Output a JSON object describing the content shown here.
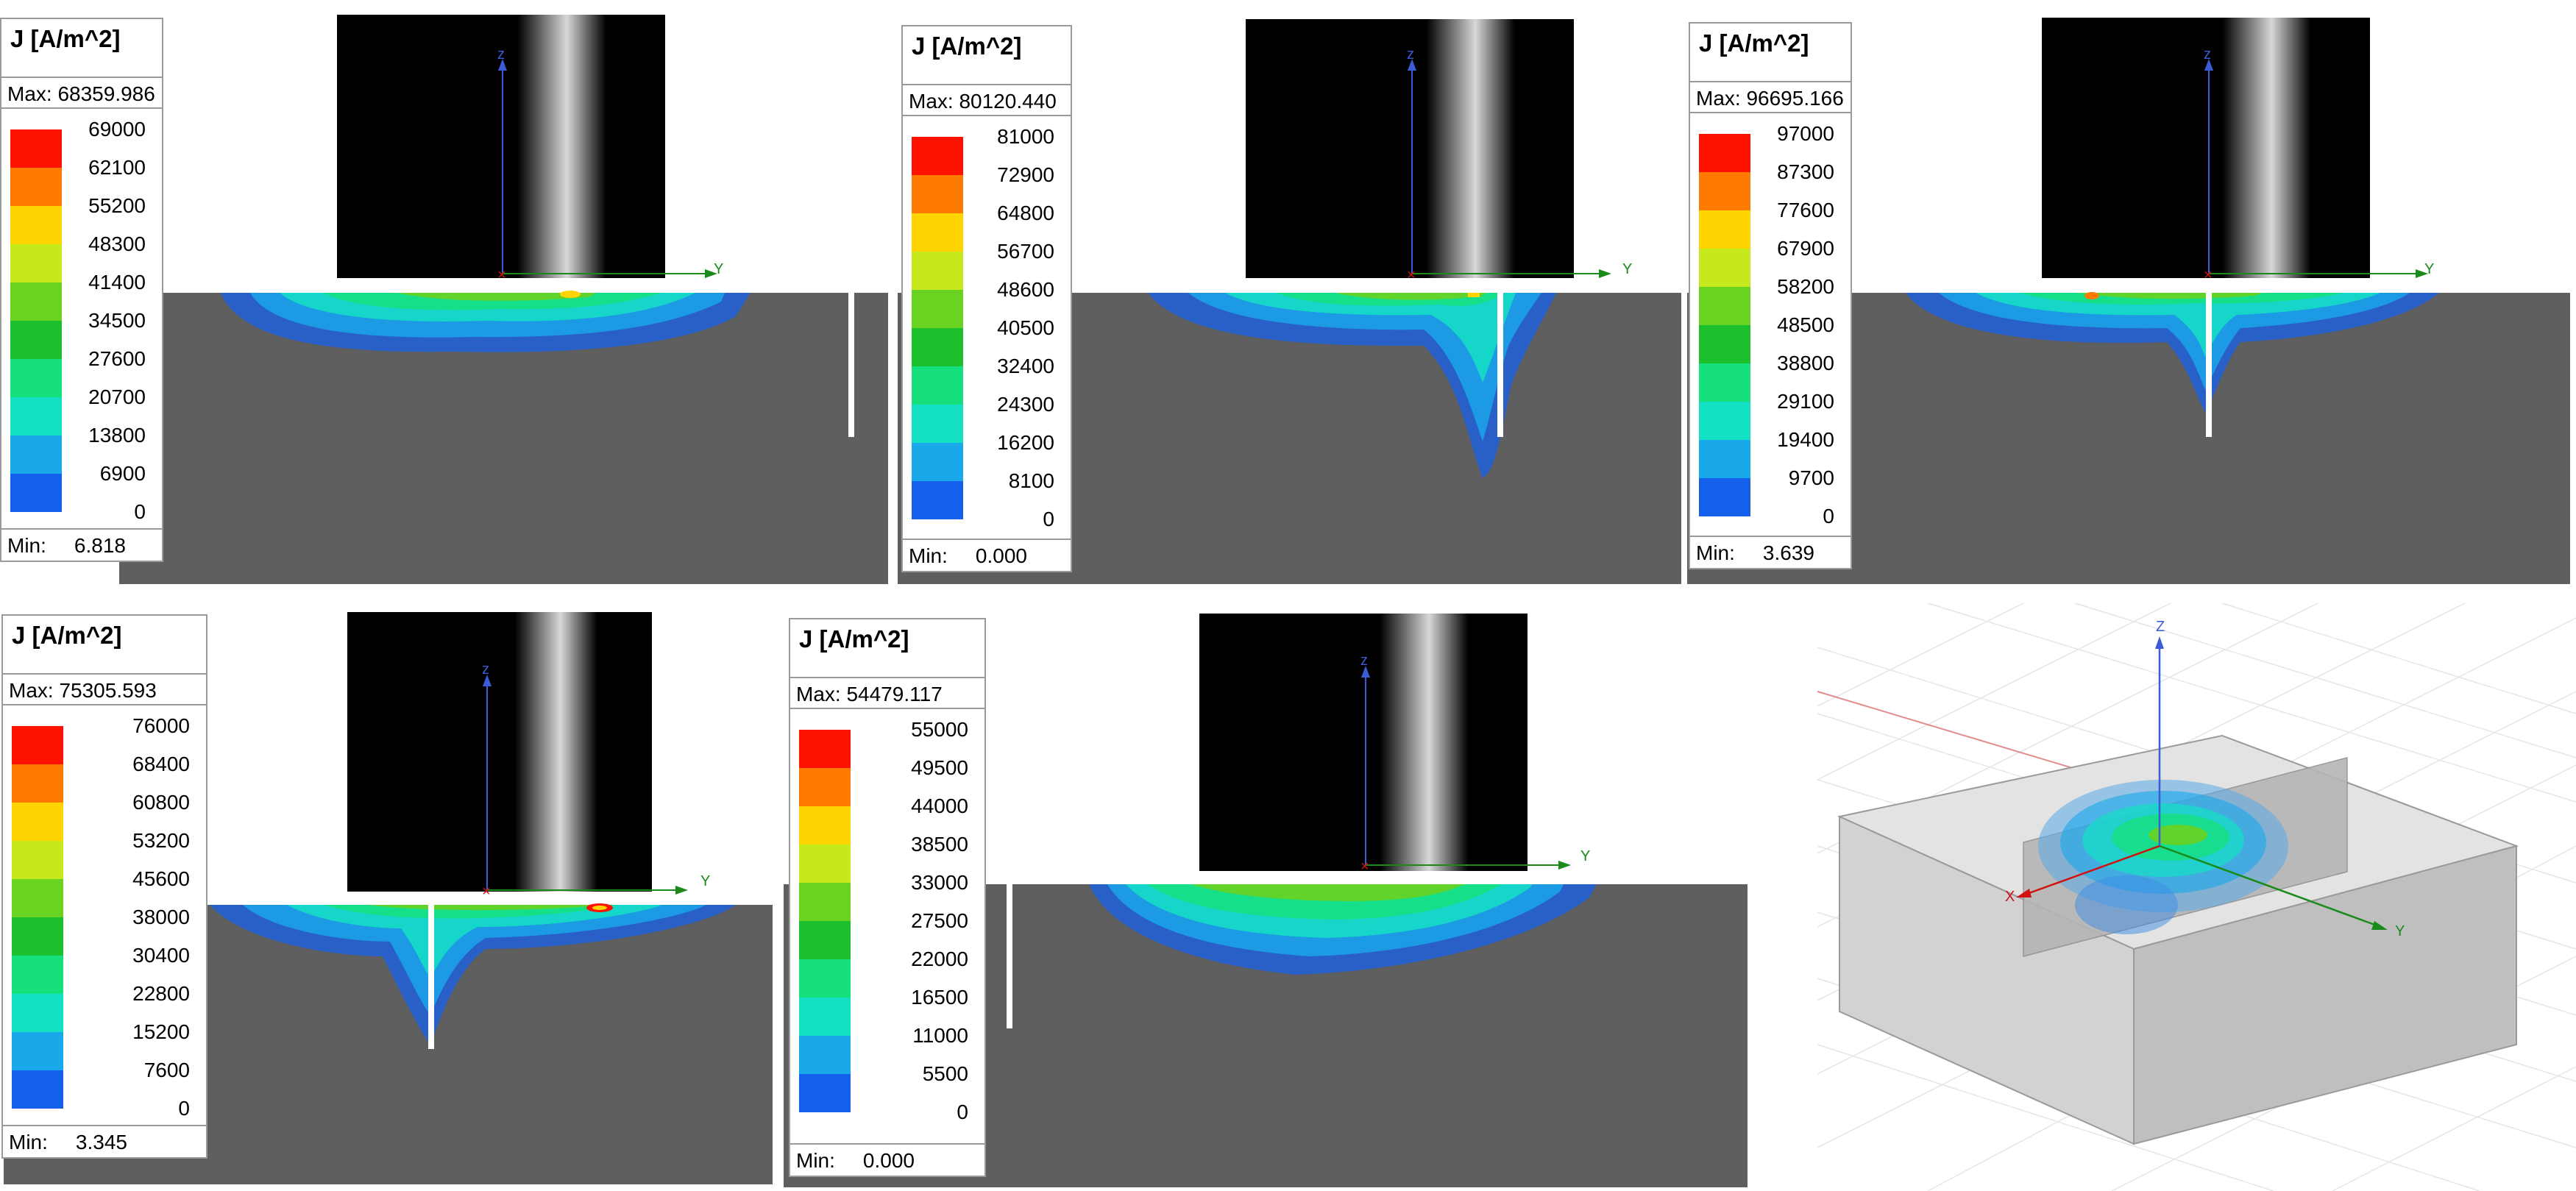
{
  "colors": {
    "scale": [
      "#0000ff",
      "#1560ea",
      "#19a9ea",
      "#14e0c4",
      "#16e07e",
      "#1bc02c",
      "#6ad221",
      "#c6e91e",
      "#ffd400",
      "#ff7a00",
      "#ff1100"
    ],
    "substrate": "#5f5f5f",
    "tool": "#000000",
    "axis_z": "#3b5cd6",
    "axis_y": "#1a8a1a",
    "axis_x": "#d21010"
  },
  "panels": [
    {
      "id": "panel-1",
      "legend": {
        "title": "J [A/m^2]",
        "max_label": "Max:",
        "max_value": "68359.986",
        "min_label": "Min:",
        "min_value": "6.818",
        "ticks": [
          "69000",
          "62100",
          "55200",
          "48300",
          "41400",
          "34500",
          "27600",
          "20700",
          "13800",
          "6900",
          "0"
        ]
      },
      "axis_labels": {
        "z": "z",
        "y": "Y"
      }
    },
    {
      "id": "panel-2",
      "legend": {
        "title": "J [A/m^2]",
        "max_label": "Max:",
        "max_value": "80120.440",
        "min_label": "Min:",
        "min_value": "0.000",
        "ticks": [
          "81000",
          "72900",
          "64800",
          "56700",
          "48600",
          "40500",
          "32400",
          "24300",
          "16200",
          "8100",
          "0"
        ]
      },
      "axis_labels": {
        "z": "z",
        "y": "Y"
      }
    },
    {
      "id": "panel-3",
      "legend": {
        "title": "J [A/m^2]",
        "max_label": "Max:",
        "max_value": "96695.166",
        "min_label": "Min:",
        "min_value": "3.639",
        "ticks": [
          "97000",
          "87300",
          "77600",
          "67900",
          "58200",
          "48500",
          "38800",
          "29100",
          "19400",
          "9700",
          "0"
        ]
      },
      "axis_labels": {
        "z": "z",
        "y": "Y"
      }
    },
    {
      "id": "panel-4",
      "legend": {
        "title": "J [A/m^2]",
        "max_label": "Max:",
        "max_value": "75305.593",
        "min_label": "Min:",
        "min_value": "3.345",
        "ticks": [
          "76000",
          "68400",
          "60800",
          "53200",
          "45600",
          "38000",
          "30400",
          "22800",
          "15200",
          "7600",
          "0"
        ]
      },
      "axis_labels": {
        "z": "z",
        "y": "Y"
      }
    },
    {
      "id": "panel-5",
      "legend": {
        "title": "J [A/m^2]",
        "max_label": "Max:",
        "max_value": "54479.117",
        "min_label": "Min:",
        "min_value": "0.000",
        "ticks": [
          "55000",
          "49500",
          "44000",
          "38500",
          "33000",
          "27500",
          "22000",
          "16500",
          "11000",
          "5500",
          "0"
        ]
      },
      "axis_labels": {
        "z": "z",
        "y": "Y"
      }
    }
  ],
  "iso_view": {
    "axis_labels": {
      "z": "Z",
      "y": "Y",
      "x": "X"
    }
  }
}
